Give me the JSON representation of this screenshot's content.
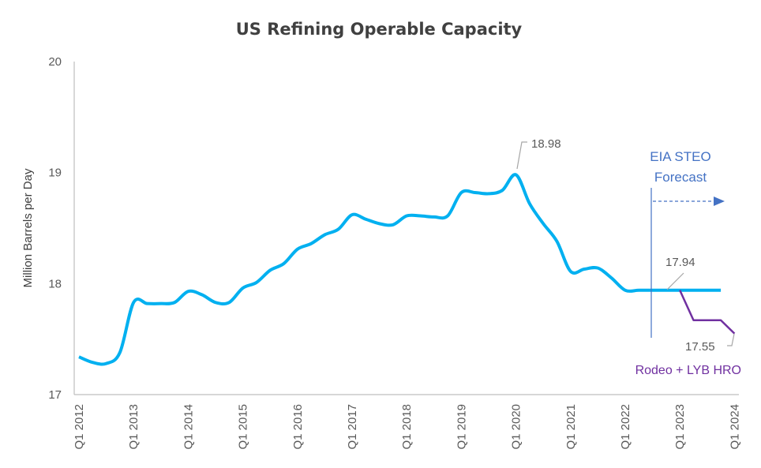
{
  "chart_data": {
    "type": "line",
    "title": "US Refining Operable Capacity",
    "ylabel": "Million Barrels per Day",
    "xlabel": "",
    "ylim": [
      17,
      20
    ],
    "yticks": [
      "17",
      "18",
      "19",
      "20"
    ],
    "grid": false,
    "x_tick_labels": [
      "Q1 2012",
      "Q1 2013",
      "Q1 2014",
      "Q1 2015",
      "Q1 2016",
      "Q1 2017",
      "Q1 2018",
      "Q1 2019",
      "Q1 2020",
      "Q1 2021",
      "Q1 2022",
      "Q1 2023",
      "Q1 2024"
    ],
    "x_start": "Q1 2012",
    "x_end": "Q1 2024",
    "series": [
      {
        "color": "#00B0F0",
        "start": "Q1 2012",
        "values": [
          17.34,
          17.29,
          17.28,
          17.38,
          17.83,
          17.82,
          17.82,
          17.83,
          17.93,
          17.9,
          17.83,
          17.83,
          17.96,
          18.01,
          18.12,
          18.18,
          18.31,
          18.36,
          18.44,
          18.49,
          18.62,
          18.58,
          18.54,
          18.53,
          18.61,
          18.61,
          18.6,
          18.61,
          18.82,
          18.82,
          18.81,
          18.84,
          18.98,
          18.72,
          18.54,
          18.38,
          18.11,
          18.13,
          18.14,
          18.05,
          17.94,
          17.94,
          17.94,
          17.94,
          17.94,
          17.94,
          17.94,
          17.94
        ]
      },
      {
        "name": "Rodeo + LYB HRO",
        "color": "#7030A0",
        "start": "Q1 2023",
        "values": [
          17.94,
          17.67,
          17.67,
          17.67,
          17.55
        ]
      }
    ],
    "annotations": {
      "peak": "18.98",
      "forecast_level": "17.94",
      "end_value": "17.55",
      "forecast_line1": "EIA STEO",
      "forecast_line2": "Forecast",
      "forecast_start": "Q3 2022"
    }
  }
}
